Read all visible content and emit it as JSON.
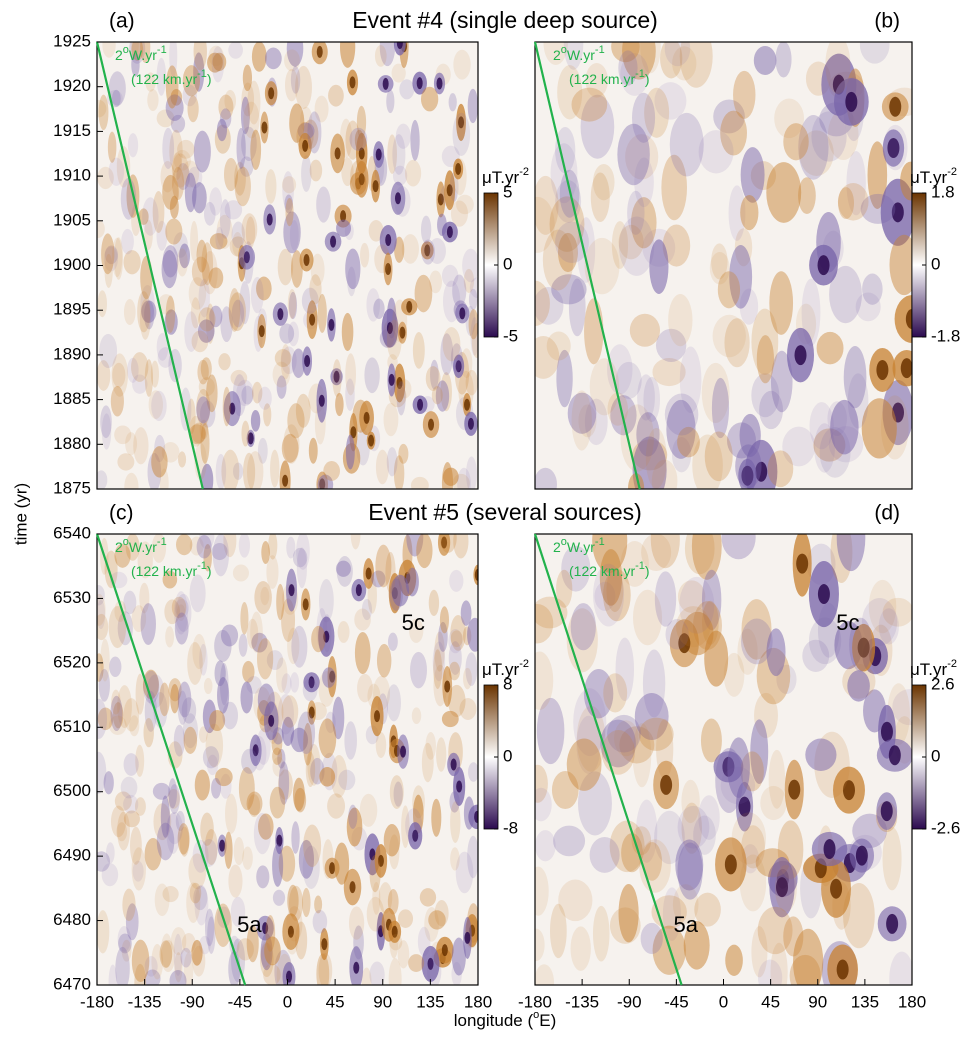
{
  "y_label": "time (yr)",
  "x_label": {
    "pre": "longitude (",
    "sup": "o",
    "post": "E)"
  },
  "chart_data": [
    {
      "type": "heatmap",
      "panel_label": "(a)",
      "title": "Event #4 (single deep source)",
      "xlim": [
        -180,
        180
      ],
      "ylim": [
        1875,
        1925
      ],
      "yticks": [
        1875,
        1880,
        1885,
        1890,
        1895,
        1900,
        1905,
        1910,
        1915,
        1920,
        1925
      ],
      "colorbar": {
        "unit": "μT.yr",
        "exp": "-2",
        "clim": [
          -5,
          5
        ],
        "ticks": [
          -5,
          0,
          5
        ],
        "colors": [
          "#2b0a4f",
          "#ffffff",
          "#6b3400"
        ]
      },
      "slope_line": {
        "x": [
          -180,
          -80
        ],
        "y": [
          1925,
          1875
        ],
        "color": "#22b24c"
      },
      "rate": {
        "a": "2",
        "b": "o",
        "c": "W.yr",
        "d": "-1",
        "e": "(122 km.yr",
        "f": "-1",
        "g": ")"
      }
    },
    {
      "type": "heatmap",
      "panel_label": "(b)",
      "xlim": [
        -180,
        180
      ],
      "ylim": [
        1875,
        1925
      ],
      "colorbar": {
        "unit": "μT.yr",
        "exp": "-2",
        "clim": [
          -1.8,
          1.8
        ],
        "ticks": [
          -1.8,
          0,
          1.8
        ],
        "colors": [
          "#2b0a4f",
          "#ffffff",
          "#6b3400"
        ]
      },
      "slope_line": {
        "x": [
          -180,
          -80
        ],
        "y": [
          1925,
          1875
        ],
        "color": "#22b24c"
      },
      "rate": {
        "a": "2",
        "b": "o",
        "c": "W.yr",
        "d": "-1",
        "e": "(122 km.yr",
        "f": "-1",
        "g": ")"
      }
    },
    {
      "type": "heatmap",
      "panel_label": "(c)",
      "title": "Event #5 (several sources)",
      "xlim": [
        -180,
        180
      ],
      "ylim": [
        6470,
        6540
      ],
      "xticks": [
        -180,
        -135,
        -90,
        -45,
        0,
        45,
        90,
        135,
        180
      ],
      "yticks": [
        6470,
        6480,
        6490,
        6500,
        6510,
        6520,
        6530,
        6540
      ],
      "colorbar": {
        "unit": "μT.yr",
        "exp": "-2",
        "clim": [
          -8,
          8
        ],
        "ticks": [
          -8,
          0,
          8
        ],
        "colors": [
          "#2b0a4f",
          "#ffffff",
          "#6b3400"
        ]
      },
      "slope_line": {
        "x": [
          -180,
          -40
        ],
        "y": [
          6540,
          6470
        ],
        "color": "#22b24c"
      },
      "rate": {
        "a": "2",
        "b": "o",
        "c": "W.yr",
        "d": "-1",
        "e": "(122 km.yr",
        "f": "-1",
        "g": ")"
      },
      "annotations": [
        "5a",
        "5c"
      ]
    },
    {
      "type": "heatmap",
      "panel_label": "(d)",
      "xlim": [
        -180,
        180
      ],
      "ylim": [
        6470,
        6540
      ],
      "xticks": [
        -180,
        -135,
        -90,
        -45,
        0,
        45,
        90,
        135,
        180
      ],
      "colorbar": {
        "unit": "μT.yr",
        "exp": "-2",
        "clim": [
          -2.6,
          2.6
        ],
        "ticks": [
          -2.6,
          0,
          2.6
        ],
        "colors": [
          "#2b0a4f",
          "#ffffff",
          "#6b3400"
        ]
      },
      "slope_line": {
        "x": [
          -180,
          -40
        ],
        "y": [
          6540,
          6470
        ],
        "color": "#22b24c"
      },
      "rate": {
        "a": "2",
        "b": "o",
        "c": "W.yr",
        "d": "-1",
        "e": "(122 km.yr",
        "f": "-1",
        "g": ")"
      },
      "annotations": [
        "5a",
        "5c"
      ]
    }
  ]
}
